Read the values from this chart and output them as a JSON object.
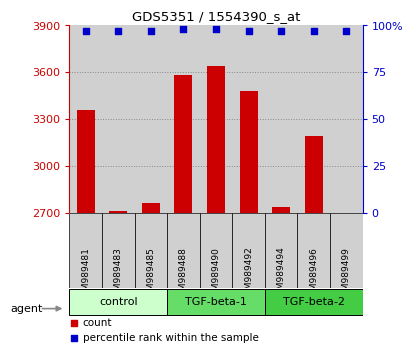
{
  "title": "GDS5351 / 1554390_s_at",
  "samples": [
    "GSM989481",
    "GSM989483",
    "GSM989485",
    "GSM989488",
    "GSM989490",
    "GSM989492",
    "GSM989494",
    "GSM989496",
    "GSM989499"
  ],
  "counts": [
    3360,
    2710,
    2760,
    3580,
    3640,
    3480,
    2740,
    3190,
    2700
  ],
  "percentiles": [
    97,
    97,
    97,
    98,
    98,
    97,
    97,
    97,
    97
  ],
  "groups": [
    {
      "label": "control",
      "indices": [
        0,
        1,
        2
      ],
      "color": "#ccffcc",
      "edge_color": "#000000"
    },
    {
      "label": "TGF-beta-1",
      "indices": [
        3,
        4,
        5
      ],
      "color": "#66dd66",
      "edge_color": "#000000"
    },
    {
      "label": "TGF-beta-2",
      "indices": [
        6,
        7,
        8
      ],
      "color": "#44cc44",
      "edge_color": "#000000"
    }
  ],
  "ylim_left": [
    2700,
    3900
  ],
  "ylim_right": [
    0,
    100
  ],
  "yticks_left": [
    2700,
    3000,
    3300,
    3600,
    3900
  ],
  "ytick_labels_left": [
    "2700",
    "3000",
    "3300",
    "3600",
    "3900"
  ],
  "yticks_right": [
    0,
    25,
    50,
    75,
    100
  ],
  "ytick_labels_right": [
    "0",
    "25",
    "50",
    "75",
    "100%"
  ],
  "bar_color": "#cc0000",
  "dot_color": "#0000cc",
  "dot_size": 18,
  "grid_color": "#888888",
  "background_color": "#ffffff",
  "bar_bg_color": "#d0d0d0",
  "legend_count_color": "#cc0000",
  "legend_pct_color": "#0000cc",
  "agent_label": "agent",
  "legend_count_label": "count",
  "legend_pct_label": "percentile rank within the sample"
}
